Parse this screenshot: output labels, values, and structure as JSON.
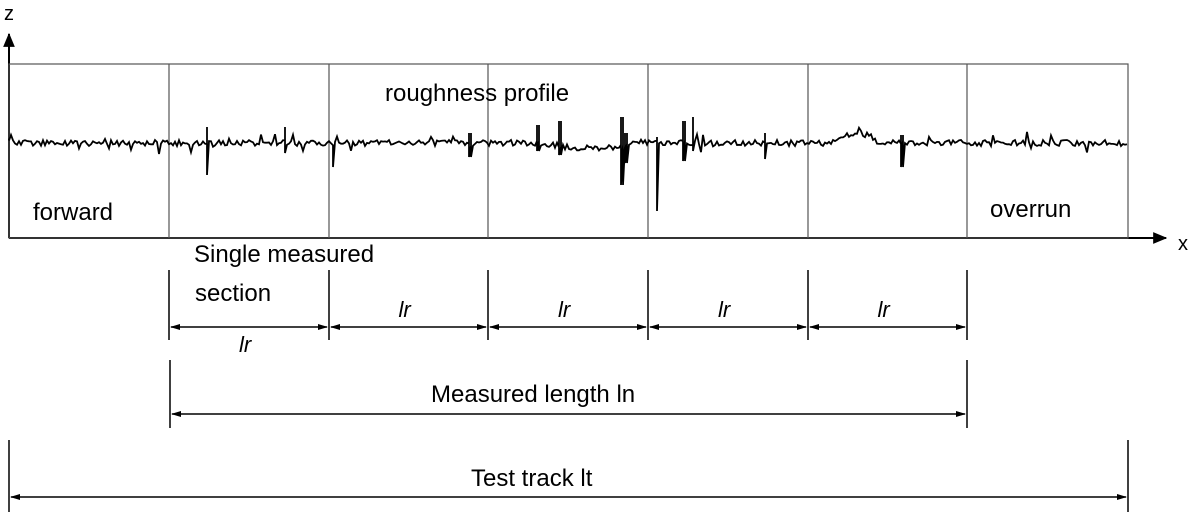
{
  "axes": {
    "z_label": "z",
    "x_label": "x"
  },
  "profile": {
    "label": "roughness profile",
    "forward_label": "forward",
    "overrun_label": "overrun",
    "section_count": 7
  },
  "sampling": {
    "single_section_label": [
      "Single measured",
      "section"
    ],
    "lr_label": "lr",
    "lr_segment_count": 5
  },
  "lengths": {
    "measured_length_label": "Measured length ln",
    "test_track_label": "Test track lt"
  },
  "colors": {
    "line": "#000000",
    "grid": "#555555",
    "background": "#ffffff"
  }
}
